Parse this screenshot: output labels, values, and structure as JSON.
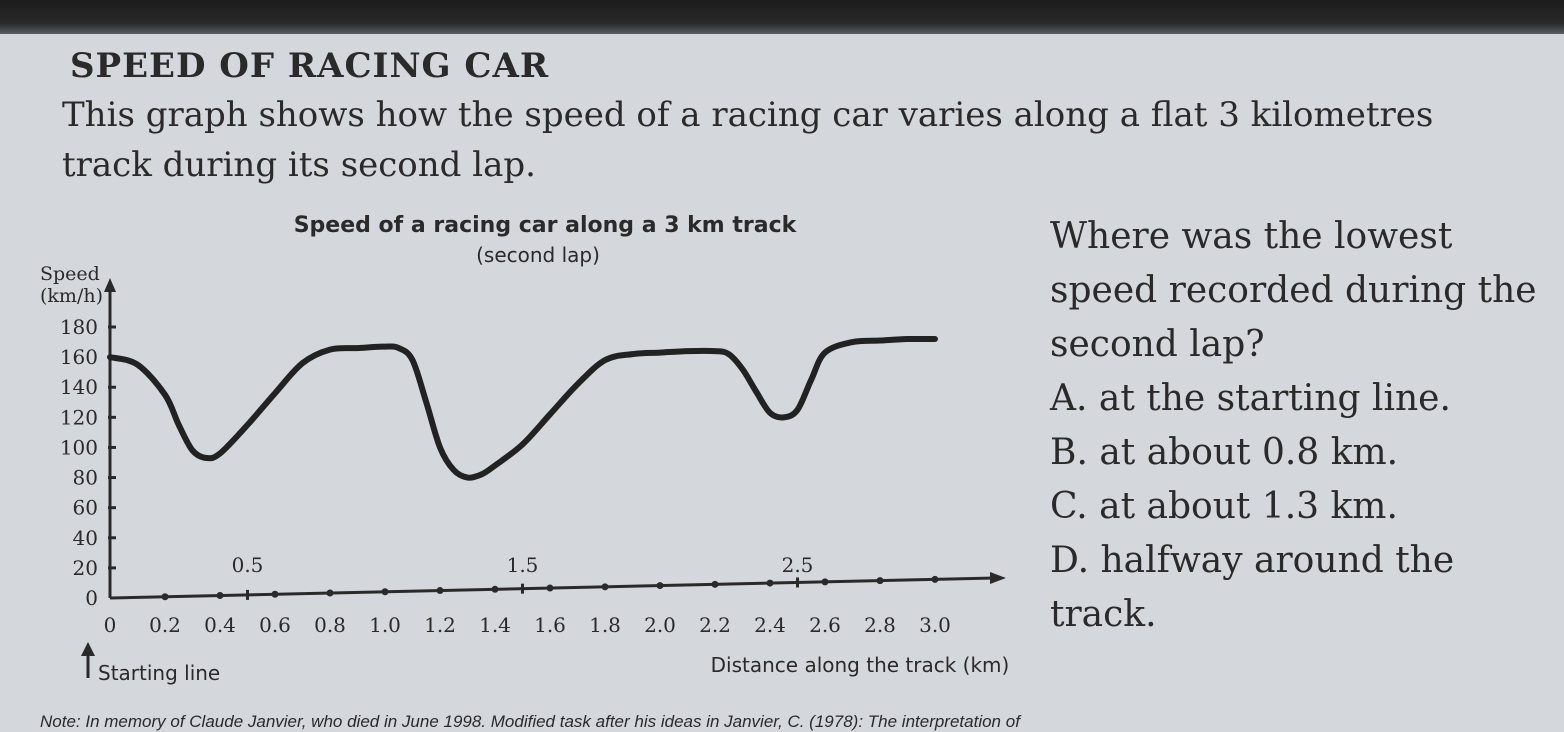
{
  "page": {
    "heading": "SPEED OF RACING CAR",
    "intro": "This graph shows how the speed of a racing car varies along a flat 3 kilometres track during its second lap.",
    "footnote": "Note: In memory of Claude Janvier, who died in June 1998. Modified task after his ideas in Janvier, C. (1978): The interpretation of"
  },
  "question": {
    "stem": "Where was the lowest speed recorded during the second lap?",
    "options": [
      "A. at the starting line.",
      "B. at about 0.8 km.",
      "C. at about 1.3 km.",
      "D. halfway around the track."
    ]
  },
  "chart_data": {
    "type": "line",
    "title": "Speed of a racing car along a 3 km track",
    "subtitle": "(second lap)",
    "xlabel": "Distance along the track (km)",
    "ylabel": "Speed (km/h)",
    "start_label": "Starting line",
    "xlim": [
      0,
      3.0
    ],
    "ylim": [
      0,
      180
    ],
    "x_ticks": [
      "0",
      "0.2",
      "0.4",
      "0.6",
      "0.8",
      "1.0",
      "1.2",
      "1.4",
      "1.6",
      "1.8",
      "2.0",
      "2.2",
      "2.4",
      "2.6",
      "2.8",
      "3.0"
    ],
    "y_ticks": [
      "0",
      "20",
      "40",
      "60",
      "80",
      "100",
      "120",
      "140",
      "160",
      "180"
    ],
    "half_ticks": [
      "0.5",
      "1.5",
      "2.5"
    ],
    "grid": false,
    "series": [
      {
        "x": [
          0,
          0.1,
          0.2,
          0.25,
          0.3,
          0.35,
          0.4,
          0.5,
          0.6,
          0.7,
          0.8,
          0.9,
          1.0,
          1.05,
          1.1,
          1.15,
          1.2,
          1.25,
          1.3,
          1.35,
          1.4,
          1.5,
          1.6,
          1.7,
          1.8,
          1.9,
          2.0,
          2.1,
          2.2,
          2.25,
          2.3,
          2.35,
          2.4,
          2.45,
          2.5,
          2.55,
          2.6,
          2.7,
          2.8,
          2.9,
          3.0
        ],
        "y": [
          160,
          155,
          135,
          115,
          98,
          93,
          96,
          115,
          136,
          156,
          165,
          166,
          167,
          166,
          158,
          130,
          100,
          85,
          80,
          82,
          88,
          102,
          122,
          142,
          158,
          162,
          163,
          164,
          164,
          162,
          152,
          137,
          123,
          120,
          125,
          145,
          163,
          170,
          171,
          172,
          172
        ]
      }
    ]
  }
}
